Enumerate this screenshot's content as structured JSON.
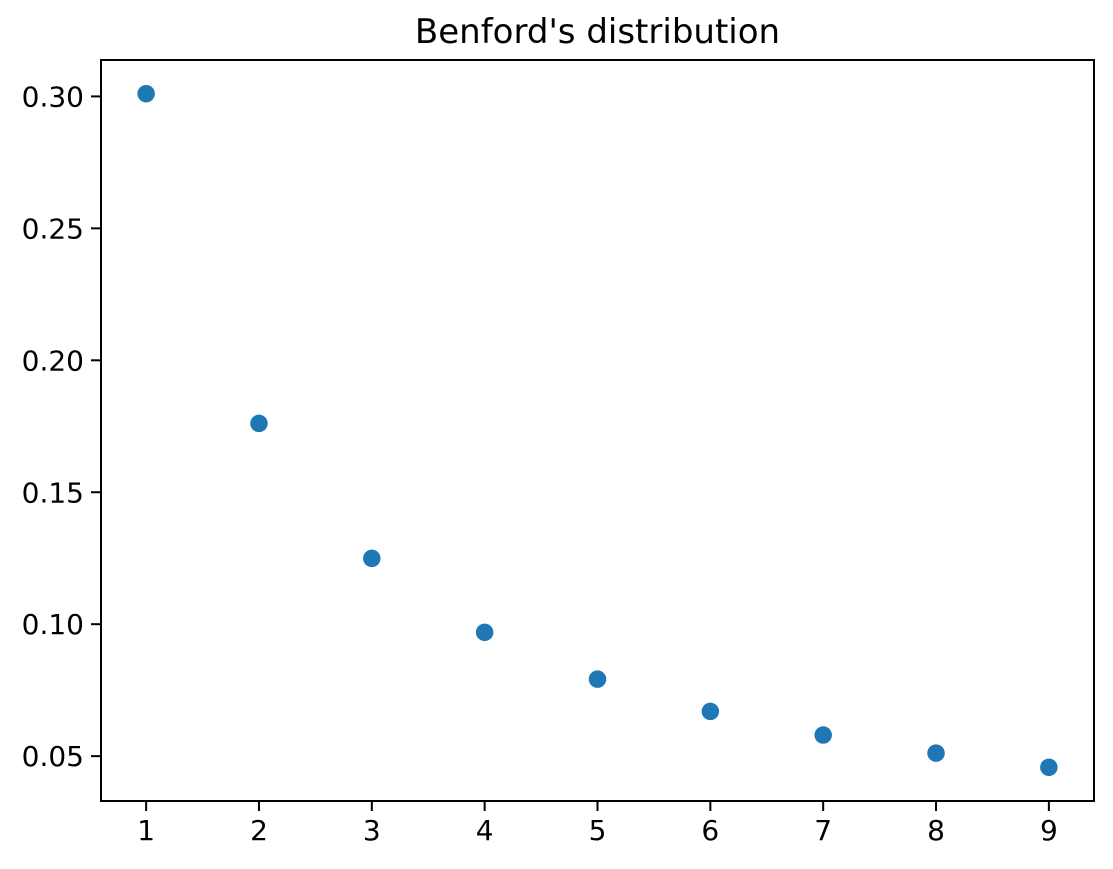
{
  "figure": {
    "background_color": "#ffffff"
  },
  "chart_data": {
    "type": "scatter",
    "title": "Benford's distribution",
    "xlabel": "",
    "ylabel": "",
    "x": [
      1,
      2,
      3,
      4,
      5,
      6,
      7,
      8,
      9
    ],
    "y": [
      0.30103,
      0.17609,
      0.12494,
      0.09691,
      0.07918,
      0.06695,
      0.05799,
      0.05115,
      0.04576
    ],
    "xlim": [
      0.6,
      9.4
    ],
    "ylim": [
      0.033,
      0.3138
    ],
    "x_tick_values": [
      1,
      2,
      3,
      4,
      5,
      6,
      7,
      8,
      9
    ],
    "x_tick_labels": [
      "1",
      "2",
      "3",
      "4",
      "5",
      "6",
      "7",
      "8",
      "9"
    ],
    "y_tick_values": [
      0.05,
      0.1,
      0.15,
      0.2,
      0.25,
      0.3
    ],
    "y_tick_labels": [
      "0.05",
      "0.10",
      "0.15",
      "0.20",
      "0.25",
      "0.30"
    ],
    "grid": false,
    "legend_position": "none",
    "marker_color": "#1f77b4",
    "marker_diameter_px": 17.5,
    "axis_color": "#000000",
    "text_color": "#000000"
  }
}
